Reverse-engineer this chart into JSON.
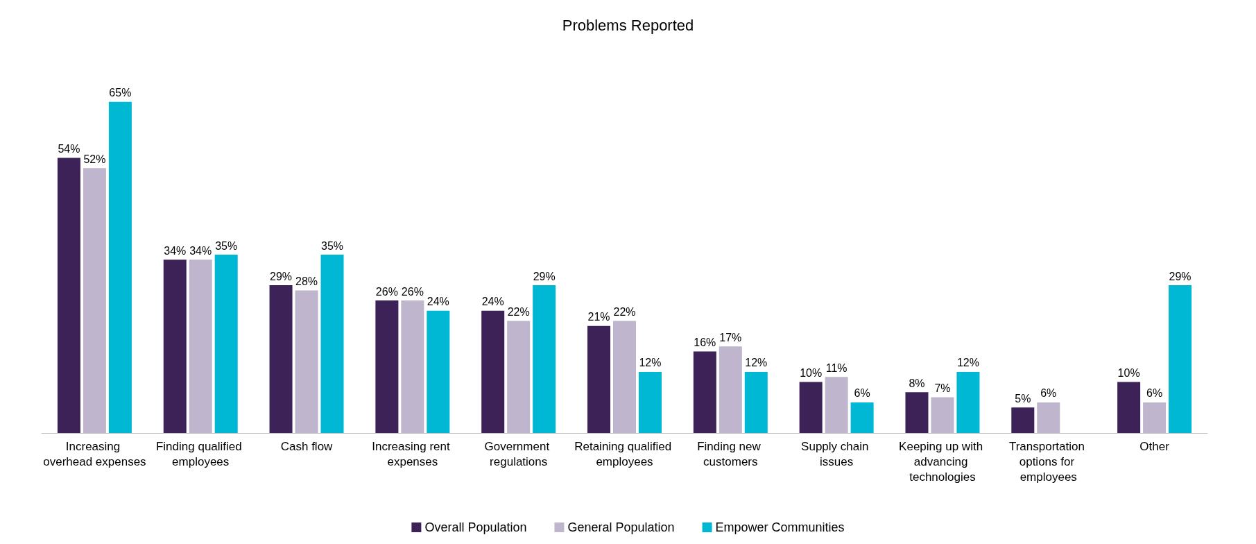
{
  "chart_data": {
    "type": "bar",
    "title": "Problems Reported",
    "categories": [
      "Increasing overhead expenses",
      "Finding qualified employees",
      "Cash flow",
      "Increasing rent expenses",
      "Government regulations",
      "Retaining qualified employees",
      "Finding new customers",
      "Supply chain issues",
      "Keeping up with advancing technologies",
      "Transportation options for employees",
      "Other"
    ],
    "series": [
      {
        "name": "Overall Population",
        "color": "#3d2257",
        "values": [
          54,
          34,
          29,
          26,
          24,
          21,
          16,
          10,
          8,
          5,
          10
        ],
        "value_labels": [
          "54%",
          "34%",
          "29%",
          "26%",
          "24%",
          "21%",
          "16%",
          "10%",
          "8%",
          "5%",
          "10%"
        ]
      },
      {
        "name": "General Population",
        "color": "#bfb5cc",
        "values": [
          52,
          34,
          28,
          26,
          22,
          22,
          17,
          11,
          7,
          6,
          6
        ],
        "value_labels": [
          "52%",
          "34%",
          "28%",
          "26%",
          "22%",
          "22%",
          "17%",
          "11%",
          "7%",
          "6%",
          "6%"
        ]
      },
      {
        "name": "Empower Communities",
        "color": "#00b8d4",
        "values": [
          65,
          35,
          35,
          24,
          29,
          12,
          12,
          6,
          12,
          null,
          29
        ],
        "value_labels": [
          "65%",
          "35%",
          "35%",
          "24%",
          "29%",
          "12%",
          "12%",
          "6%",
          "12%",
          null,
          "29%"
        ]
      }
    ],
    "legend": "bottom"
  }
}
